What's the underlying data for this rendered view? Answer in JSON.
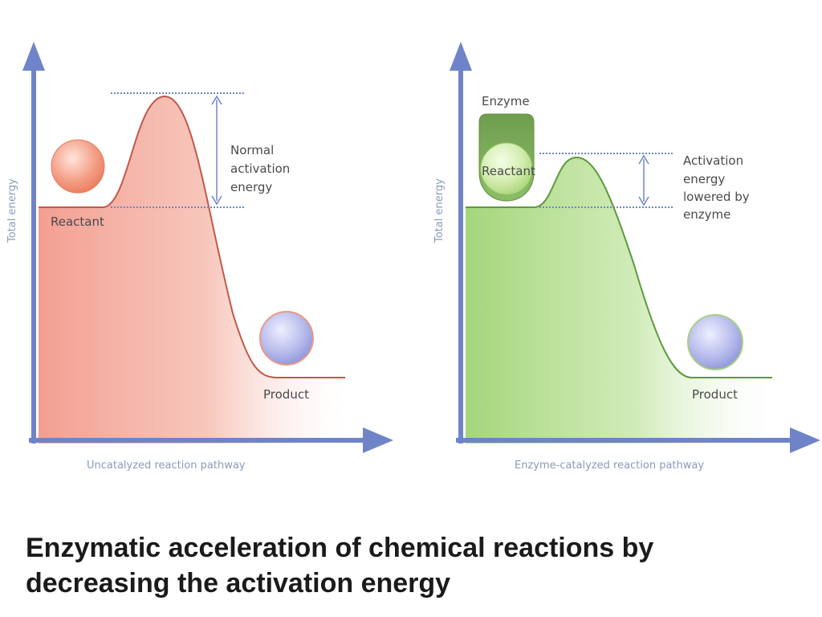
{
  "caption": {
    "line1": "Enzymatic acceleration of chemical reactions by",
    "line2": "decreasing the activation energy"
  },
  "uncatalyzed": {
    "y_axis_label": "Total energy",
    "x_axis_label": "Uncatalyzed reaction pathway",
    "reactant_label": "Reactant",
    "product_label": "Product",
    "barrier_label": [
      "Normal",
      "activation",
      "energy"
    ],
    "fill_color": "#f29a8c",
    "reactant_color": "#f08a70",
    "product_color": "#9aa0e0"
  },
  "catalyzed": {
    "y_axis_label": "Total energy",
    "x_axis_label": "Enzyme-catalyzed reaction pathway",
    "enzyme_label": "Enzyme",
    "reactant_label": "Reactant",
    "product_label": "Product",
    "barrier_label": [
      "Activation",
      "energy",
      "lowered by",
      "enzyme"
    ],
    "fill_color": "#9fd474",
    "enzyme_color": "#7aaa58",
    "reactant_color": "#c6e89a",
    "product_color": "#9aa0e0"
  },
  "axis_color": "#6f84c8"
}
